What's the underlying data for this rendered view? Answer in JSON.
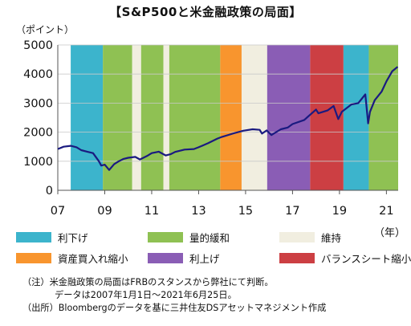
{
  "title": "【S&P500と米金融政策の局面】",
  "unit_label": "（ポイント）",
  "x_unit_label": "（年）",
  "chart_data": {
    "type": "line",
    "title": "【S&P500と米金融政策の局面】",
    "xlabel": "",
    "ylabel": "（ポイント）",
    "ylim": [
      0,
      5000
    ],
    "xlim": [
      2007.0,
      2021.5
    ],
    "yticks": [
      0,
      1000,
      2000,
      3000,
      4000,
      5000
    ],
    "xtick_labels": [
      "07",
      "09",
      "11",
      "13",
      "15",
      "17",
      "19",
      "21"
    ],
    "xtick_years": [
      2007,
      2009,
      2011,
      2013,
      2015,
      2017,
      2019,
      2021
    ],
    "grid": true,
    "phases": [
      {
        "start": 2007.55,
        "end": 2008.92,
        "phase": "cut"
      },
      {
        "start": 2008.92,
        "end": 2010.17,
        "phase": "qe"
      },
      {
        "start": 2010.17,
        "end": 2010.55,
        "phase": "hold"
      },
      {
        "start": 2010.55,
        "end": 2011.5,
        "phase": "qe"
      },
      {
        "start": 2011.5,
        "end": 2011.75,
        "phase": "hold"
      },
      {
        "start": 2011.75,
        "end": 2013.92,
        "phase": "qe"
      },
      {
        "start": 2013.92,
        "end": 2014.83,
        "phase": "taper"
      },
      {
        "start": 2014.83,
        "end": 2015.92,
        "phase": "hold"
      },
      {
        "start": 2015.92,
        "end": 2017.75,
        "phase": "hike"
      },
      {
        "start": 2017.75,
        "end": 2019.17,
        "phase": "qt"
      },
      {
        "start": 2019.17,
        "end": 2020.25,
        "phase": "cut"
      },
      {
        "start": 2020.25,
        "end": 2021.5,
        "phase": "qe"
      }
    ],
    "series": [
      {
        "color": "#1a1a80",
        "x": [
          2007.0,
          2007.25,
          2007.55,
          2007.8,
          2008.0,
          2008.25,
          2008.5,
          2008.75,
          2008.85,
          2009.0,
          2009.19,
          2009.4,
          2009.6,
          2009.8,
          2010.0,
          2010.3,
          2010.5,
          2010.8,
          2011.0,
          2011.3,
          2011.6,
          2011.8,
          2012.0,
          2012.4,
          2012.8,
          2013.0,
          2013.4,
          2013.8,
          2014.0,
          2014.5,
          2014.9,
          2015.3,
          2015.6,
          2015.7,
          2015.9,
          2016.1,
          2016.5,
          2016.8,
          2017.0,
          2017.5,
          2018.0,
          2018.1,
          2018.5,
          2018.75,
          2018.95,
          2019.1,
          2019.5,
          2019.8,
          2020.1,
          2020.22,
          2020.3,
          2020.5,
          2020.8,
          2021.0,
          2021.25,
          2021.48
        ],
        "y": [
          1420,
          1500,
          1530,
          1480,
          1380,
          1330,
          1280,
          1000,
          850,
          880,
          700,
          900,
          1000,
          1080,
          1120,
          1150,
          1060,
          1180,
          1280,
          1330,
          1200,
          1240,
          1320,
          1400,
          1420,
          1480,
          1620,
          1780,
          1840,
          1960,
          2050,
          2100,
          2080,
          1950,
          2060,
          1900,
          2100,
          2160,
          2280,
          2420,
          2780,
          2650,
          2750,
          2900,
          2450,
          2700,
          2950,
          3000,
          3300,
          2300,
          2700,
          3100,
          3400,
          3750,
          4100,
          4250
        ]
      }
    ],
    "legend_position": "bottom",
    "legend": [
      {
        "key": "cut",
        "label": "利下げ",
        "color": "#3cb4cc"
      },
      {
        "key": "qe",
        "label": "量的緩和",
        "color": "#8fc153"
      },
      {
        "key": "hold",
        "label": "維持",
        "color": "#f1eee0"
      },
      {
        "key": "taper",
        "label": "資産買入れ縮小",
        "color": "#f8952e"
      },
      {
        "key": "hike",
        "label": "利上げ",
        "color": "#8a5db5"
      },
      {
        "key": "qt",
        "label": "バランスシート縮小",
        "color": "#cc3f43"
      }
    ]
  },
  "notes": [
    "（注）米金融政策の局面はFRBのスタンスから弊社にて判断。",
    "データは2007年1月1日～2021年6月25日。",
    "（出所）Bloombergのデータを基に三井住友DSアセットマネジメント作成"
  ]
}
